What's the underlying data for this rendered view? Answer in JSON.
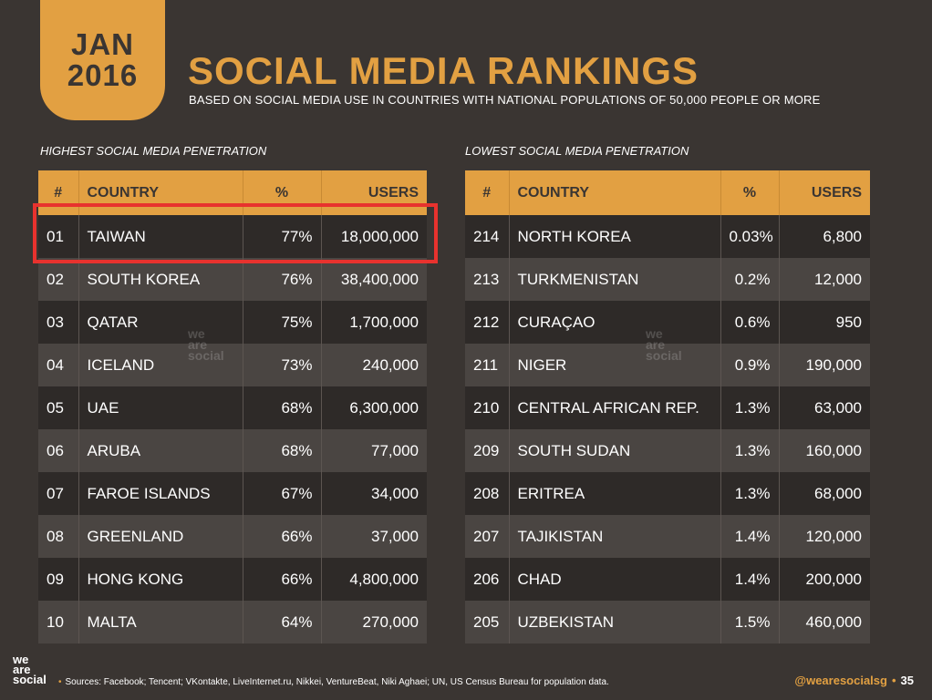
{
  "date_badge": {
    "month": "JAN",
    "year": "2016"
  },
  "title": "SOCIAL MEDIA RANKINGS",
  "subtitle": "BASED ON SOCIAL MEDIA USE IN COUNTRIES WITH NATIONAL POPULATIONS OF 50,000 PEOPLE OR MORE",
  "highest": {
    "title": "HIGHEST SOCIAL MEDIA PENETRATION",
    "headers": {
      "num": "#",
      "country": "COUNTRY",
      "pct": "%",
      "users": "USERS"
    },
    "rows": [
      {
        "num": "01",
        "country": "TAIWAN",
        "pct": "77%",
        "users": "18,000,000"
      },
      {
        "num": "02",
        "country": "SOUTH KOREA",
        "pct": "76%",
        "users": "38,400,000"
      },
      {
        "num": "03",
        "country": "QATAR",
        "pct": "75%",
        "users": "1,700,000"
      },
      {
        "num": "04",
        "country": "ICELAND",
        "pct": "73%",
        "users": "240,000"
      },
      {
        "num": "05",
        "country": "UAE",
        "pct": "68%",
        "users": "6,300,000"
      },
      {
        "num": "06",
        "country": "ARUBA",
        "pct": "68%",
        "users": "77,000"
      },
      {
        "num": "07",
        "country": "FAROE ISLANDS",
        "pct": "67%",
        "users": "34,000"
      },
      {
        "num": "08",
        "country": "GREENLAND",
        "pct": "66%",
        "users": "37,000"
      },
      {
        "num": "09",
        "country": "HONG KONG",
        "pct": "66%",
        "users": "4,800,000"
      },
      {
        "num": "10",
        "country": "MALTA",
        "pct": "64%",
        "users": "270,000"
      }
    ]
  },
  "lowest": {
    "title": "LOWEST SOCIAL MEDIA PENETRATION",
    "headers": {
      "num": "#",
      "country": "COUNTRY",
      "pct": "%",
      "users": "USERS"
    },
    "rows": [
      {
        "num": "214",
        "country": "NORTH KOREA",
        "pct": "0.03%",
        "users": "6,800"
      },
      {
        "num": "213",
        "country": "TURKMENISTAN",
        "pct": "0.2%",
        "users": "12,000"
      },
      {
        "num": "212",
        "country": "CURAÇAO",
        "pct": "0.6%",
        "users": "950"
      },
      {
        "num": "211",
        "country": "NIGER",
        "pct": "0.9%",
        "users": "190,000"
      },
      {
        "num": "210",
        "country": "CENTRAL AFRICAN REP.",
        "pct": "1.3%",
        "users": "63,000"
      },
      {
        "num": "209",
        "country": "SOUTH SUDAN",
        "pct": "1.3%",
        "users": "160,000"
      },
      {
        "num": "208",
        "country": "ERITREA",
        "pct": "1.3%",
        "users": "68,000"
      },
      {
        "num": "207",
        "country": "TAJIKISTAN",
        "pct": "1.4%",
        "users": "120,000"
      },
      {
        "num": "206",
        "country": "CHAD",
        "pct": "1.4%",
        "users": "200,000"
      },
      {
        "num": "205",
        "country": "UZBEKISTAN",
        "pct": "1.5%",
        "users": "460,000"
      }
    ]
  },
  "watermark": {
    "line1": "we",
    "line2": "are",
    "line3": "social"
  },
  "footer": {
    "logo": {
      "line1": "we",
      "line2": "are",
      "line3": "social"
    },
    "sources": "Sources: Facebook; Tencent; VKontakte, LiveInternet.ru, Nikkei, VentureBeat, Niki Aghaei; UN, US Census Bureau for population data.",
    "handle": "@wearesocialsg",
    "page_number": "35"
  },
  "colors": {
    "background": "#3a3532",
    "accent": "#e2a042",
    "highlight": "#e8322e"
  }
}
